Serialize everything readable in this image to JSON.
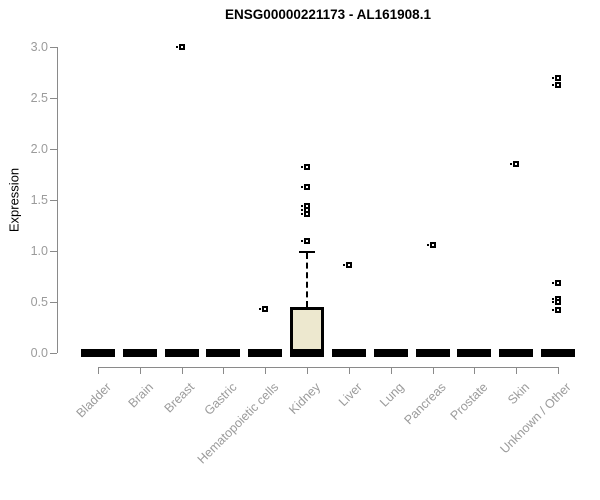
{
  "chart_data": {
    "type": "box",
    "title": "ENSG00000221173 - AL161908.1",
    "ylabel": "Expression",
    "ylim": [
      0.0,
      3.0
    ],
    "ytick_labels": [
      "3.0",
      "2.5",
      "2.0",
      "1.5",
      "1.0",
      "0.5",
      "0.0"
    ],
    "ytick_values": [
      3.0,
      2.5,
      2.0,
      1.5,
      1.0,
      0.5,
      0.0
    ],
    "grid": "off",
    "legend": "none",
    "categories": [
      "Bladder",
      "Brain",
      "Breast",
      "Gastric",
      "Hematopoietic cells",
      "Kidney",
      "Liver",
      "Lung",
      "Pancreas",
      "Prostate",
      "Skin",
      "Unknown / Other"
    ],
    "boxes": [
      {
        "category": "Bladder",
        "q1": 0,
        "median": 0,
        "q3": 0,
        "whisker_low": 0,
        "whisker_high": 0,
        "outliers": []
      },
      {
        "category": "Brain",
        "q1": 0,
        "median": 0,
        "q3": 0,
        "whisker_low": 0,
        "whisker_high": 0,
        "outliers": []
      },
      {
        "category": "Breast",
        "q1": 0,
        "median": 0,
        "q3": 0,
        "whisker_low": 0,
        "whisker_high": 0,
        "outliers": [
          3.0
        ]
      },
      {
        "category": "Gastric",
        "q1": 0,
        "median": 0,
        "q3": 0,
        "whisker_low": 0,
        "whisker_high": 0,
        "outliers": []
      },
      {
        "category": "Hematopoietic cells",
        "q1": 0,
        "median": 0,
        "q3": 0,
        "whisker_low": 0,
        "whisker_high": 0,
        "outliers": [
          0.43
        ]
      },
      {
        "category": "Kidney",
        "q1": 0,
        "median": 0,
        "q3": 0.45,
        "whisker_low": 0,
        "whisker_high": 1.0,
        "outliers": [
          1.82,
          1.63,
          1.44,
          1.4,
          1.36,
          1.1
        ]
      },
      {
        "category": "Liver",
        "q1": 0,
        "median": 0,
        "q3": 0,
        "whisker_low": 0,
        "whisker_high": 0,
        "outliers": [
          0.86
        ]
      },
      {
        "category": "Lung",
        "q1": 0,
        "median": 0,
        "q3": 0,
        "whisker_low": 0,
        "whisker_high": 0,
        "outliers": []
      },
      {
        "category": "Pancreas",
        "q1": 0,
        "median": 0,
        "q3": 0,
        "whisker_low": 0,
        "whisker_high": 0,
        "outliers": [
          1.06
        ]
      },
      {
        "category": "Prostate",
        "q1": 0,
        "median": 0,
        "q3": 0,
        "whisker_low": 0,
        "whisker_high": 0,
        "outliers": []
      },
      {
        "category": "Skin",
        "q1": 0,
        "median": 0,
        "q3": 0,
        "whisker_low": 0,
        "whisker_high": 0,
        "outliers": [
          1.85
        ]
      },
      {
        "category": "Unknown / Other",
        "q1": 0,
        "median": 0,
        "q3": 0,
        "whisker_low": 0,
        "whisker_high": 0,
        "outliers": [
          2.7,
          2.63,
          0.69,
          0.53,
          0.5,
          0.42
        ]
      }
    ],
    "colors": {
      "box_fill": "#EDE8CF",
      "box_border": "#000000",
      "zero_bar": "#000000",
      "outlier": "#000000",
      "axis_line": "#8A8A8A",
      "label_text": "#9B9B9B",
      "title_text": "#000000",
      "background": "#FFFFFF"
    }
  }
}
